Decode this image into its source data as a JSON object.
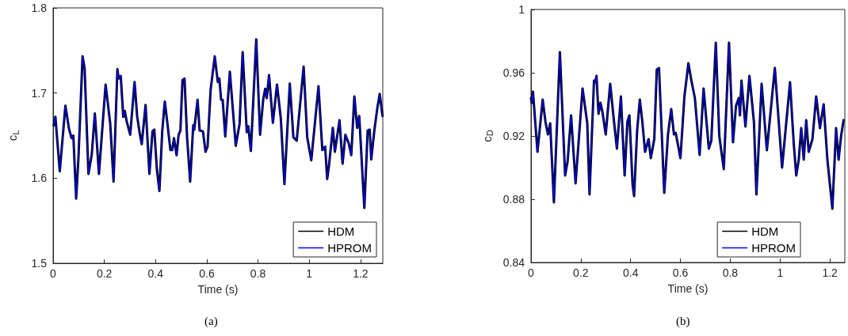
{
  "chart_data": [
    {
      "type": "line",
      "xlabel": "Time (s)",
      "ylabel": "c$_{L}$",
      "annotations": [
        "(a)"
      ],
      "xlim": [
        0,
        1.287
      ],
      "xticks": [
        0,
        0.2,
        0.4,
        0.6,
        0.8,
        1,
        1.2
      ],
      "ylim": [
        1.5,
        1.8
      ],
      "yticks": [
        1.5,
        1.6,
        1.7,
        1.8
      ],
      "grid": false,
      "legend": "bottom right",
      "marker": "none",
      "line_style": "solid",
      "x": [
        0.003,
        0.009,
        0.026,
        0.048,
        0.062,
        0.072,
        0.079,
        0.09,
        0.099,
        0.115,
        0.123,
        0.138,
        0.151,
        0.163,
        0.179,
        0.205,
        0.223,
        0.236,
        0.251,
        0.256,
        0.264,
        0.274,
        0.28,
        0.287,
        0.301,
        0.318,
        0.328,
        0.338,
        0.346,
        0.361,
        0.376,
        0.388,
        0.395,
        0.405,
        0.415,
        0.426,
        0.436,
        0.446,
        0.458,
        0.465,
        0.472,
        0.482,
        0.49,
        0.497,
        0.505,
        0.513,
        0.523,
        0.535,
        0.547,
        0.551,
        0.564,
        0.572,
        0.585,
        0.595,
        0.603,
        0.615,
        0.631,
        0.643,
        0.649,
        0.656,
        0.662,
        0.672,
        0.69,
        0.713,
        0.728,
        0.74,
        0.756,
        0.762,
        0.772,
        0.793,
        0.808,
        0.82,
        0.828,
        0.834,
        0.843,
        0.858,
        0.874,
        0.889,
        0.903,
        0.924,
        0.938,
        0.951,
        0.978,
        0.992,
        1.008,
        1.036,
        1.051,
        1.062,
        1.07,
        1.077,
        1.092,
        1.1,
        1.118,
        1.13,
        1.141,
        1.154,
        1.164,
        1.176,
        1.187,
        1.195,
        1.215,
        1.228,
        1.236,
        1.242,
        1.254,
        1.265,
        1.275,
        1.286
      ],
      "series": [
        {
          "name": "HDM",
          "color": "#000000",
          "values": [
            1.662,
            1.672,
            1.608,
            1.685,
            1.658,
            1.647,
            1.65,
            1.576,
            1.624,
            1.743,
            1.729,
            1.605,
            1.628,
            1.676,
            1.605,
            1.71,
            1.664,
            1.596,
            1.728,
            1.717,
            1.72,
            1.672,
            1.679,
            1.667,
            1.651,
            1.713,
            1.673,
            1.653,
            1.64,
            1.686,
            1.605,
            1.655,
            1.657,
            1.611,
            1.585,
            1.655,
            1.69,
            1.665,
            1.633,
            1.633,
            1.647,
            1.627,
            1.651,
            1.656,
            1.715,
            1.717,
            1.648,
            1.596,
            1.662,
            1.657,
            1.692,
            1.656,
            1.655,
            1.631,
            1.637,
            1.704,
            1.743,
            1.713,
            1.717,
            1.692,
            1.692,
            1.649,
            1.725,
            1.638,
            1.664,
            1.748,
            1.654,
            1.661,
            1.632,
            1.763,
            1.651,
            1.692,
            1.705,
            1.694,
            1.721,
            1.665,
            1.71,
            1.67,
            1.593,
            1.711,
            1.648,
            1.644,
            1.731,
            1.648,
            1.621,
            1.708,
            1.633,
            1.637,
            1.599,
            1.615,
            1.659,
            1.631,
            1.668,
            1.617,
            1.651,
            1.641,
            1.627,
            1.696,
            1.659,
            1.673,
            1.565,
            1.656,
            1.657,
            1.622,
            1.656,
            1.681,
            1.699,
            1.673
          ]
        },
        {
          "name": "HPROM",
          "color": "#0000ff",
          "values": [
            1.662,
            1.672,
            1.608,
            1.685,
            1.658,
            1.647,
            1.65,
            1.576,
            1.624,
            1.743,
            1.729,
            1.605,
            1.628,
            1.676,
            1.605,
            1.71,
            1.664,
            1.596,
            1.728,
            1.717,
            1.72,
            1.672,
            1.679,
            1.667,
            1.651,
            1.713,
            1.673,
            1.653,
            1.64,
            1.686,
            1.605,
            1.655,
            1.657,
            1.611,
            1.585,
            1.655,
            1.69,
            1.665,
            1.633,
            1.633,
            1.647,
            1.627,
            1.651,
            1.656,
            1.715,
            1.717,
            1.648,
            1.596,
            1.662,
            1.657,
            1.692,
            1.656,
            1.655,
            1.631,
            1.637,
            1.704,
            1.743,
            1.713,
            1.717,
            1.692,
            1.692,
            1.649,
            1.725,
            1.638,
            1.664,
            1.748,
            1.654,
            1.661,
            1.632,
            1.763,
            1.651,
            1.692,
            1.705,
            1.694,
            1.721,
            1.665,
            1.71,
            1.67,
            1.593,
            1.711,
            1.648,
            1.644,
            1.731,
            1.648,
            1.621,
            1.708,
            1.633,
            1.637,
            1.599,
            1.615,
            1.659,
            1.631,
            1.668,
            1.617,
            1.651,
            1.641,
            1.627,
            1.696,
            1.659,
            1.673,
            1.565,
            1.656,
            1.657,
            1.622,
            1.656,
            1.681,
            1.699,
            1.673
          ]
        }
      ]
    },
    {
      "type": "line",
      "xlabel": "Time (s)",
      "ylabel": "c$_{D}$",
      "annotations": [
        "(b)"
      ],
      "xlim": [
        0,
        1.26
      ],
      "xticks": [
        0,
        0.2,
        0.4,
        0.6,
        0.8,
        1,
        1.2
      ],
      "ylim": [
        0.84,
        1
      ],
      "yticks": [
        0.84,
        0.88,
        0.92,
        0.96,
        1
      ],
      "grid": false,
      "legend": "bottom right",
      "marker": "none",
      "line_style": "solid",
      "x": [
        0,
        0.003,
        0.008,
        0.026,
        0.047,
        0.058,
        0.068,
        0.077,
        0.092,
        0.116,
        0.137,
        0.147,
        0.161,
        0.179,
        0.207,
        0.226,
        0.235,
        0.253,
        0.258,
        0.263,
        0.271,
        0.279,
        0.287,
        0.3,
        0.318,
        0.332,
        0.345,
        0.361,
        0.376,
        0.387,
        0.395,
        0.408,
        0.414,
        0.426,
        0.437,
        0.447,
        0.458,
        0.472,
        0.481,
        0.495,
        0.505,
        0.514,
        0.535,
        0.55,
        0.563,
        0.574,
        0.581,
        0.6,
        0.616,
        0.632,
        0.644,
        0.658,
        0.677,
        0.693,
        0.714,
        0.724,
        0.742,
        0.756,
        0.774,
        0.795,
        0.811,
        0.823,
        0.834,
        0.839,
        0.845,
        0.861,
        0.877,
        0.895,
        0.905,
        0.926,
        0.947,
        0.979,
        1.008,
        1.04,
        1.055,
        1.065,
        1.075,
        1.085,
        1.095,
        1.105,
        1.115,
        1.13,
        1.145,
        1.16,
        1.175,
        1.19,
        1.21,
        1.225,
        1.235,
        1.245,
        1.255
      ],
      "series": [
        {
          "name": "HDM",
          "color": "#000000",
          "values": [
            0.944,
            0.941,
            0.948,
            0.91,
            0.943,
            0.929,
            0.921,
            0.928,
            0.878,
            0.973,
            0.895,
            0.904,
            0.933,
            0.89,
            0.95,
            0.928,
            0.883,
            0.955,
            0.954,
            0.958,
            0.934,
            0.941,
            0.935,
            0.921,
            0.953,
            0.931,
            0.912,
            0.945,
            0.895,
            0.929,
            0.933,
            0.889,
            0.882,
            0.923,
            0.943,
            0.929,
            0.91,
            0.918,
            0.906,
            0.918,
            0.962,
            0.963,
            0.884,
            0.921,
            0.937,
            0.921,
            0.922,
            0.906,
            0.945,
            0.966,
            0.955,
            0.944,
            0.908,
            0.95,
            0.912,
            0.917,
            0.979,
            0.92,
            0.899,
            0.979,
            0.916,
            0.939,
            0.944,
            0.933,
            0.955,
            0.926,
            0.958,
            0.929,
            0.883,
            0.953,
            0.911,
            0.963,
            0.9,
            0.954,
            0.915,
            0.895,
            0.905,
            0.925,
            0.905,
            0.93,
            0.91,
            0.918,
            0.945,
            0.925,
            0.94,
            0.905,
            0.874,
            0.925,
            0.905,
            0.92,
            0.93
          ]
        },
        {
          "name": "HPROM",
          "color": "#0000ff",
          "values": [
            0.944,
            0.941,
            0.948,
            0.91,
            0.943,
            0.929,
            0.921,
            0.928,
            0.878,
            0.973,
            0.895,
            0.904,
            0.933,
            0.89,
            0.95,
            0.928,
            0.883,
            0.955,
            0.954,
            0.958,
            0.934,
            0.941,
            0.935,
            0.921,
            0.953,
            0.931,
            0.912,
            0.945,
            0.895,
            0.929,
            0.933,
            0.889,
            0.882,
            0.923,
            0.943,
            0.929,
            0.91,
            0.918,
            0.906,
            0.918,
            0.962,
            0.963,
            0.884,
            0.921,
            0.937,
            0.921,
            0.922,
            0.906,
            0.945,
            0.966,
            0.955,
            0.944,
            0.908,
            0.95,
            0.912,
            0.917,
            0.979,
            0.92,
            0.899,
            0.979,
            0.916,
            0.939,
            0.944,
            0.933,
            0.955,
            0.926,
            0.958,
            0.929,
            0.883,
            0.953,
            0.911,
            0.963,
            0.9,
            0.954,
            0.915,
            0.895,
            0.905,
            0.925,
            0.905,
            0.93,
            0.91,
            0.918,
            0.945,
            0.925,
            0.94,
            0.905,
            0.874,
            0.925,
            0.905,
            0.92,
            0.93
          ]
        }
      ]
    }
  ]
}
